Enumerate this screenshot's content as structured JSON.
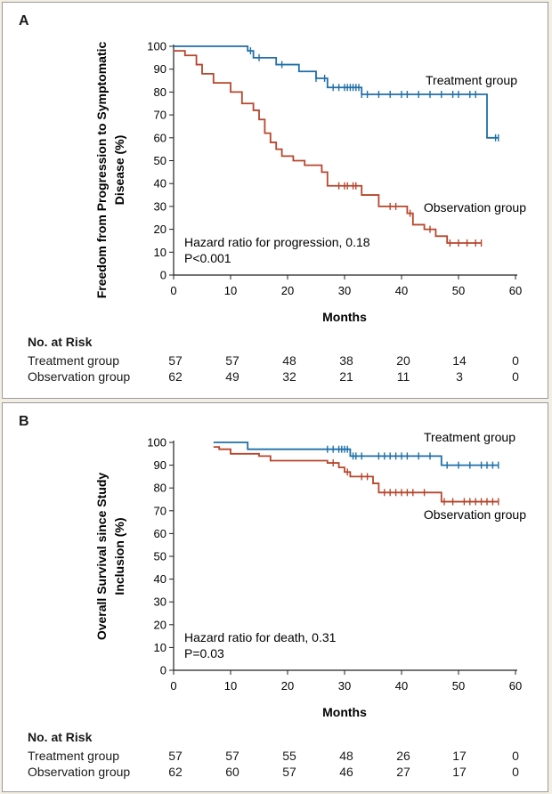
{
  "chart_data": [
    {
      "type": "line",
      "panel_letter": "A",
      "ylabel_lines": [
        "Freedom from Progression to Symptomatic",
        "Disease (%)"
      ],
      "xlabel": "Months",
      "xlim": [
        0,
        60
      ],
      "ylim": [
        0,
        100
      ],
      "xticks": [
        0,
        10,
        20,
        30,
        40,
        50,
        60
      ],
      "yticks": [
        0,
        10,
        20,
        30,
        40,
        50,
        60,
        70,
        80,
        90,
        100
      ],
      "annotation": [
        "Hazard ratio for progression, 0.18",
        "P<0.001"
      ],
      "series": [
        {
          "name": "Treatment group",
          "color": "#1f6fa8",
          "x": [
            0,
            13,
            14,
            18,
            22,
            25,
            27,
            33,
            54.5,
            55,
            57
          ],
          "y": [
            100,
            98,
            95,
            92,
            89,
            86,
            82,
            79,
            79,
            60,
            60
          ],
          "censor_x": [
            13.5,
            15,
            19,
            25,
            26.5,
            28,
            29,
            30,
            30.5,
            31,
            31.5,
            32,
            32.5,
            33,
            34,
            36,
            38,
            40,
            41,
            43,
            45,
            47,
            49,
            50,
            52,
            53,
            56.5,
            57
          ]
        },
        {
          "name": "Observation group",
          "color": "#b8452c",
          "x": [
            0,
            2,
            4,
            5,
            7,
            10,
            12,
            14,
            15,
            16,
            17,
            18,
            19,
            21,
            23,
            26,
            27,
            33,
            36,
            41,
            42,
            44,
            46,
            48,
            54
          ],
          "y": [
            98,
            96,
            92,
            88,
            84,
            80,
            75,
            72,
            68,
            62,
            58,
            55,
            52,
            50,
            48,
            45,
            39,
            35,
            30,
            27,
            22,
            20,
            17,
            14,
            14
          ],
          "censor_x": [
            29,
            30,
            30.5,
            31.5,
            32,
            38,
            39,
            41.5,
            45,
            48.5,
            50,
            51.5,
            53,
            54
          ]
        }
      ],
      "risk_table": {
        "title": "No. at Risk",
        "timepoints": [
          0,
          10,
          20,
          30,
          40,
          50,
          60
        ],
        "rows": [
          {
            "name": "Treatment group",
            "values": [
              "57",
              "57",
              "48",
              "38",
              "20",
              "14",
              "0"
            ]
          },
          {
            "name": "Observation group",
            "values": [
              "62",
              "49",
              "32",
              "21",
              "11",
              "3",
              "0"
            ]
          }
        ]
      }
    },
    {
      "type": "line",
      "panel_letter": "B",
      "ylabel_lines": [
        "Overall Survival since Study",
        "Inclusion (%)"
      ],
      "xlabel": "Months",
      "xlim": [
        0,
        60
      ],
      "ylim": [
        0,
        100
      ],
      "xticks": [
        0,
        10,
        20,
        30,
        40,
        50,
        60
      ],
      "yticks": [
        0,
        10,
        20,
        30,
        40,
        50,
        60,
        70,
        80,
        90,
        100
      ],
      "annotation": [
        "Hazard ratio for death, 0.31",
        "P=0.03"
      ],
      "series": [
        {
          "name": "Treatment group",
          "color": "#1f6fa8",
          "x": [
            7,
            13,
            31,
            47,
            57
          ],
          "y": [
            100,
            97,
            94,
            90,
            90
          ],
          "censor_x": [
            27,
            28,
            29,
            29.5,
            30,
            30.5,
            31.5,
            32,
            33,
            36,
            37,
            38,
            39,
            40,
            41,
            43,
            45,
            48,
            50,
            52,
            54,
            55,
            56,
            57
          ]
        },
        {
          "name": "Observation group",
          "color": "#b8452c",
          "x": [
            7,
            8,
            10,
            15,
            17,
            27,
            29,
            30,
            31,
            35,
            36,
            47,
            57
          ],
          "y": [
            98,
            97,
            95,
            94,
            92,
            91,
            89,
            87,
            85,
            82,
            78,
            74,
            74
          ],
          "censor_x": [
            28,
            30.5,
            33,
            34,
            37,
            38,
            39,
            40,
            41,
            42,
            44,
            47.5,
            49,
            51,
            52,
            53,
            54,
            55,
            56,
            57
          ]
        }
      ],
      "risk_table": {
        "title": "No. at Risk",
        "timepoints": [
          0,
          10,
          20,
          30,
          40,
          50,
          60
        ],
        "rows": [
          {
            "name": "Treatment group",
            "values": [
              "57",
              "57",
              "55",
              "48",
              "26",
              "17",
              "0"
            ]
          },
          {
            "name": "Observation group",
            "values": [
              "62",
              "60",
              "57",
              "46",
              "27",
              "17",
              "0"
            ]
          }
        ]
      }
    }
  ]
}
